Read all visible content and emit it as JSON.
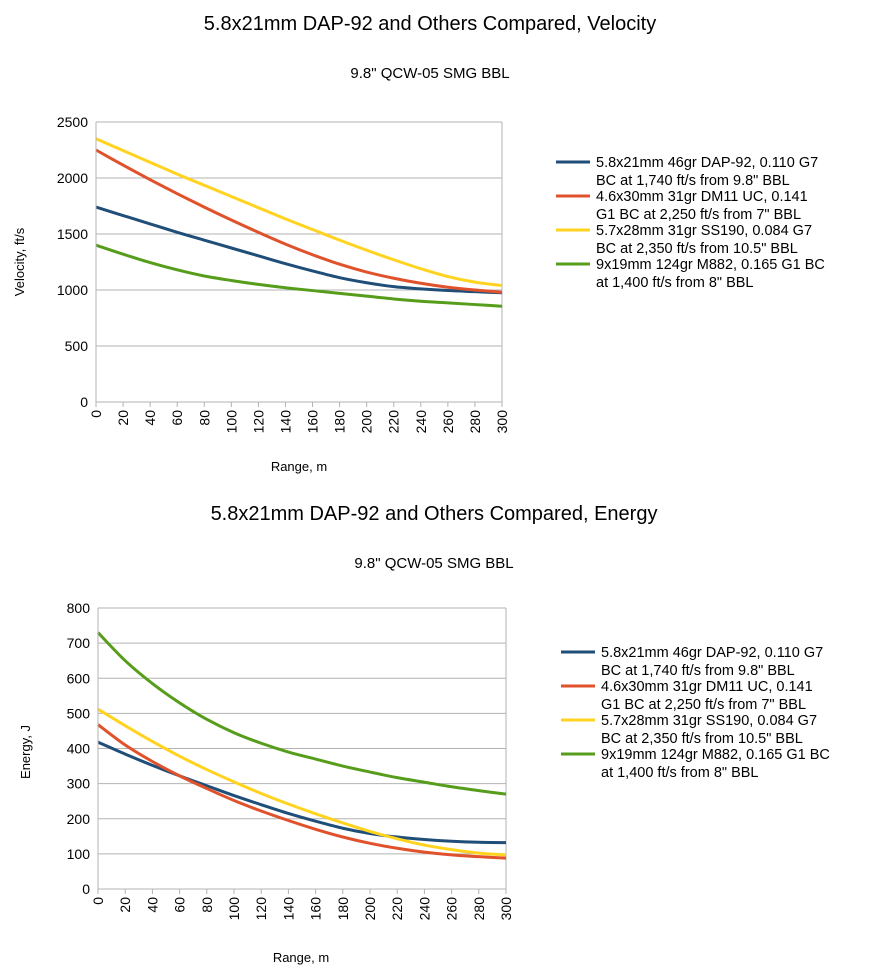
{
  "chart_data": [
    {
      "type": "line",
      "title": "5.8x21mm DAP-92 and Others Compared, Velocity",
      "subtitle": "9.8\" QCW-05 SMG BBL",
      "xlabel": "Range, m",
      "ylabel": "Velocity, ft/s",
      "xlim": [
        0,
        300
      ],
      "ylim": [
        0,
        2500
      ],
      "xticks": [
        0,
        20,
        40,
        60,
        80,
        100,
        120,
        140,
        160,
        180,
        200,
        220,
        240,
        260,
        280,
        300
      ],
      "yticks": [
        0,
        500,
        1000,
        1500,
        2000,
        2500
      ],
      "grid": true,
      "legend_position": "right",
      "x": [
        0,
        20,
        40,
        60,
        80,
        100,
        120,
        140,
        160,
        180,
        200,
        220,
        240,
        260,
        280,
        300
      ],
      "series": [
        {
          "name": "5.8x21mm 46gr DAP-92, 0.110 G7 BC at 1,740 ft/s from 9.8\" BBL",
          "label_lines": [
            "5.8x21mm 46gr DAP-92, 0.110 G7",
            "BC at 1,740 ft/s from 9.8\" BBL"
          ],
          "color": "#1f4e79",
          "values": [
            1740,
            1665,
            1590,
            1515,
            1445,
            1375,
            1305,
            1235,
            1170,
            1110,
            1065,
            1030,
            1010,
            995,
            985,
            975
          ]
        },
        {
          "name": "4.6x30mm 31gr DM11 UC, 0.141 G1 BC at 2,250 ft/s from 7\" BBL",
          "label_lines": [
            "4.6x30mm 31gr DM11 UC, 0.141",
            "G1 BC at 2,250 ft/s from 7\" BBL"
          ],
          "color": "#e0522b",
          "values": [
            2250,
            2115,
            1985,
            1860,
            1740,
            1625,
            1515,
            1410,
            1315,
            1230,
            1160,
            1105,
            1060,
            1025,
            1000,
            980
          ]
        },
        {
          "name": "5.7x28mm 31gr SS190, 0.084 G7 BC at 2,350 ft/s from 10.5\" BBL",
          "label_lines": [
            "5.7x28mm 31gr SS190, 0.084 G7",
            "BC at 2,350 ft/s from 10.5\" BBL"
          ],
          "color": "#ffd320",
          "values": [
            2350,
            2245,
            2140,
            2035,
            1935,
            1835,
            1735,
            1635,
            1540,
            1445,
            1355,
            1270,
            1190,
            1120,
            1070,
            1040
          ]
        },
        {
          "name": "9x19mm 124gr M882, 0.165 G1 BC at 1,400 ft/s from 8\" BBL",
          "label_lines": [
            "9x19mm 124gr M882, 0.165 G1 BC",
            "at 1,400 ft/s from 8\" BBL"
          ],
          "color": "#579d1c",
          "values": [
            1400,
            1320,
            1245,
            1180,
            1125,
            1085,
            1050,
            1020,
            995,
            970,
            945,
            920,
            900,
            885,
            870,
            855
          ]
        }
      ]
    },
    {
      "type": "line",
      "title": "5.8x21mm DAP-92 and Others Compared, Energy",
      "subtitle": "9.8\" QCW-05 SMG BBL",
      "xlabel": "Range, m",
      "ylabel": "Energy, J",
      "xlim": [
        0,
        300
      ],
      "ylim": [
        0,
        800
      ],
      "xticks": [
        0,
        20,
        40,
        60,
        80,
        100,
        120,
        140,
        160,
        180,
        200,
        220,
        240,
        260,
        280,
        300
      ],
      "yticks": [
        0,
        100,
        200,
        300,
        400,
        500,
        600,
        700,
        800
      ],
      "grid": true,
      "legend_position": "right",
      "x": [
        0,
        20,
        40,
        60,
        80,
        100,
        120,
        140,
        160,
        180,
        200,
        220,
        240,
        260,
        280,
        300
      ],
      "series": [
        {
          "name": "5.8x21mm 46gr DAP-92, 0.110 G7 BC at 1,740 ft/s from 9.8\" BBL",
          "label_lines": [
            "5.8x21mm 46gr DAP-92, 0.110 G7",
            "BC at 1,740 ft/s from 9.8\" BBL"
          ],
          "color": "#1f4e79",
          "values": [
            418,
            384,
            352,
            322,
            294,
            266,
            240,
            215,
            193,
            173,
            158,
            148,
            141,
            136,
            133,
            132
          ]
        },
        {
          "name": "4.6x30mm 31gr DM11 UC, 0.141 G1 BC at 2,250 ft/s from 7\" BBL",
          "label_lines": [
            "4.6x30mm 31gr DM11 UC, 0.141",
            "G1 BC at 2,250 ft/s from 7\" BBL"
          ],
          "color": "#e0522b",
          "values": [
            468,
            410,
            363,
            322,
            286,
            252,
            222,
            195,
            170,
            148,
            130,
            116,
            105,
            97,
            92,
            88
          ]
        },
        {
          "name": "5.7x28mm 31gr SS190, 0.084 G7 BC at 2,350 ft/s from 10.5\" BBL",
          "label_lines": [
            "5.7x28mm 31gr SS190, 0.084 G7",
            "BC at 2,350 ft/s from 10.5\" BBL"
          ],
          "color": "#ffd320",
          "values": [
            512,
            465,
            420,
            378,
            340,
            305,
            272,
            242,
            214,
            188,
            164,
            143,
            125,
            112,
            102,
            97
          ]
        },
        {
          "name": "9x19mm 124gr M882, 0.165 G1 BC at 1,400 ft/s from 8\" BBL",
          "label_lines": [
            "9x19mm 124gr M882, 0.165 G1 BC",
            "at 1,400 ft/s from 8\" BBL"
          ],
          "color": "#579d1c",
          "values": [
            730,
            650,
            585,
            530,
            483,
            445,
            415,
            390,
            370,
            350,
            333,
            317,
            304,
            291,
            280,
            270
          ]
        }
      ]
    }
  ]
}
